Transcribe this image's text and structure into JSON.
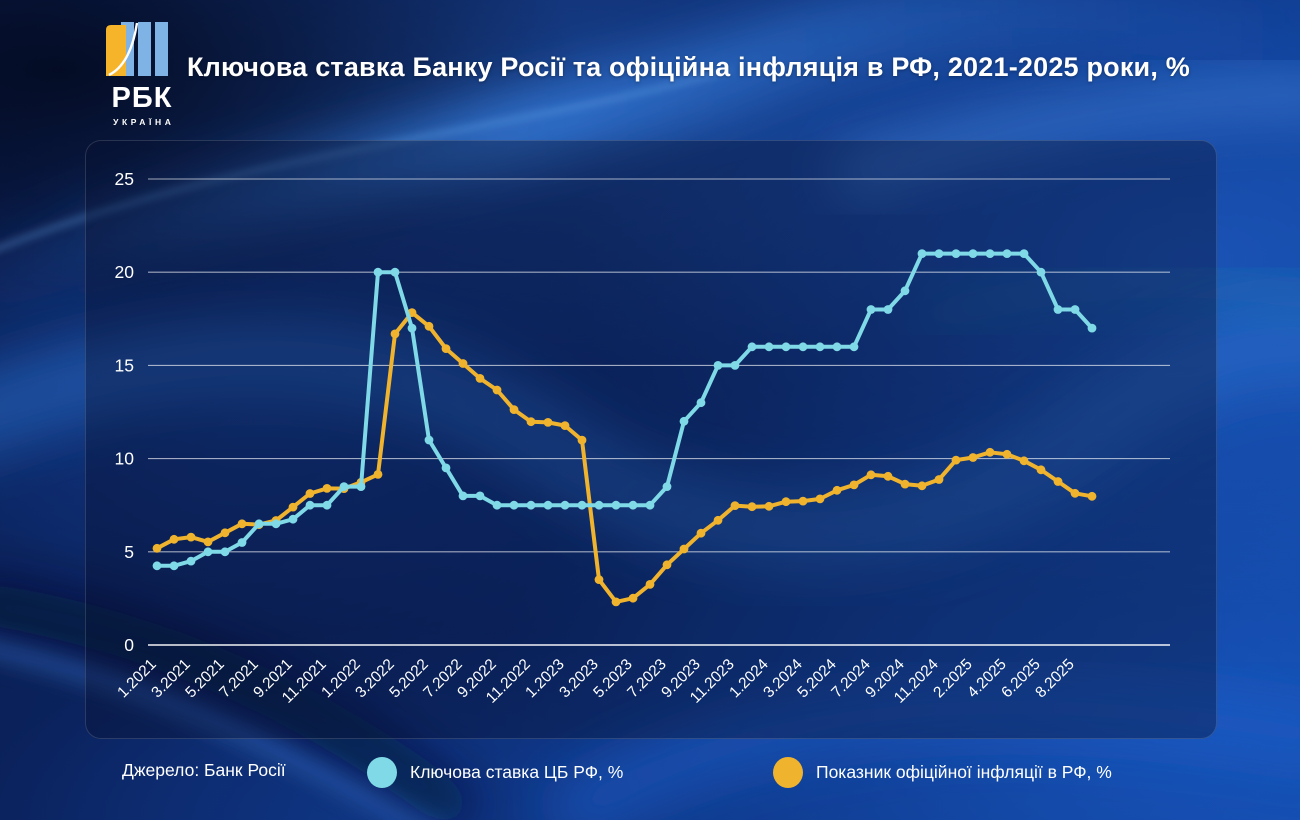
{
  "header": {
    "title": "Ключова ставка Банку Росії та офіційна інфляція в РФ, 2021-2025 роки, %"
  },
  "logo": {
    "name": "РБК",
    "country": "УКРАЇНА",
    "bar_blue": "#7FB2E5",
    "sail_yellow": "#F6B42B"
  },
  "legend": {
    "source": "Джерело: Банк Росії",
    "items": [
      {
        "label": "Ключова ставка ЦБ РФ, %",
        "color": "#7FD9E6"
      },
      {
        "label": "Показник офіційної інфляції в РФ, %",
        "color": "#F0B32E"
      }
    ]
  },
  "chart_data": {
    "type": "line",
    "title": "Ключова ставка Банку Росії та офіційна інфляція в РФ, 2021-2025 роки, %",
    "ylim": [
      0,
      25
    ],
    "yticks": [
      0,
      5,
      10,
      15,
      20,
      25
    ],
    "grid": "horizontal",
    "x_tick_labeling": "every second point",
    "x": [
      "1.2021",
      "2.2021",
      "3.2021",
      "4.2021",
      "5.2021",
      "6.2021",
      "7.2021",
      "8.2021",
      "9.2021",
      "10.2021",
      "11.2021",
      "12.2021",
      "1.2022",
      "2.2022",
      "3.2022",
      "4.2022",
      "5.2022",
      "6.2022",
      "7.2022",
      "8.2022",
      "9.2022",
      "10.2022",
      "11.2022",
      "12.2022",
      "1.2023",
      "2.2023",
      "3.2023",
      "4.2023",
      "5.2023",
      "6.2023",
      "7.2023",
      "8.2023",
      "9.2023",
      "10.2023",
      "11.2023",
      "12.2023",
      "1.2024",
      "2.2024",
      "3.2024",
      "4.2024",
      "5.2024",
      "6.2024",
      "7.2024",
      "8.2024",
      "9.2024",
      "10.2024",
      "11.2024",
      "1.2025",
      "2.2025",
      "3.2025",
      "4.2025",
      "5.2025",
      "6.2025",
      "7.2025",
      "8.2025",
      "9.2025"
    ],
    "series": [
      {
        "name": "Ключова ставка ЦБ РФ, %",
        "color": "#7FD9E6",
        "values": [
          4.25,
          4.25,
          4.5,
          5,
          5,
          5.5,
          6.5,
          6.5,
          6.75,
          7.5,
          7.5,
          8.5,
          8.5,
          20,
          20,
          17,
          11,
          9.5,
          8,
          8,
          7.5,
          7.5,
          7.5,
          7.5,
          7.5,
          7.5,
          7.5,
          7.5,
          7.5,
          7.5,
          8.5,
          12,
          13,
          15,
          15,
          16,
          16,
          16,
          16,
          16,
          16,
          16,
          18,
          18,
          19,
          21,
          21,
          21,
          21,
          21,
          21,
          21,
          20,
          18,
          18,
          17
        ]
      },
      {
        "name": "Показник офіційної інфляції в РФ, %",
        "color": "#F0B32E",
        "values": [
          5.19,
          5.67,
          5.79,
          5.53,
          6.02,
          6.5,
          6.46,
          6.68,
          7.4,
          8.13,
          8.4,
          8.39,
          8.73,
          9.15,
          16.69,
          17.83,
          17.1,
          15.9,
          15.1,
          14.3,
          13.68,
          12.63,
          11.98,
          11.94,
          11.77,
          10.99,
          3.51,
          2.31,
          2.51,
          3.25,
          4.3,
          5.15,
          6.0,
          6.69,
          7.48,
          7.42,
          7.44,
          7.69,
          7.72,
          7.84,
          8.3,
          8.59,
          9.13,
          9.05,
          8.63,
          8.54,
          8.88,
          9.92,
          10.06,
          10.34,
          10.23,
          9.88,
          9.4,
          8.77,
          8.14,
          7.98
        ]
      }
    ]
  }
}
